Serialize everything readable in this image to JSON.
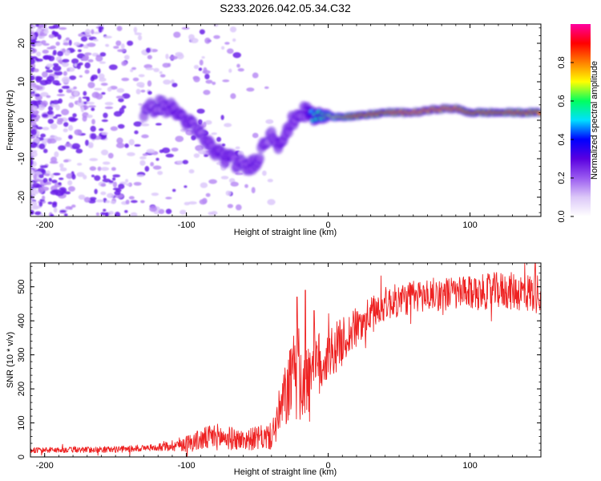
{
  "chart_data": [
    {
      "type": "heatmap",
      "title": "S233.2026.042.05.34.C32",
      "xlabel": "Height of straight line (km)",
      "ylabel": "Frequency (Hz)",
      "xlim": [
        -210,
        150
      ],
      "ylim": [
        -25,
        25
      ],
      "xticks": [
        -200,
        -100,
        0,
        100
      ],
      "yticks": [
        -20,
        -10,
        0,
        10,
        20
      ],
      "colorbar": {
        "label": "Normalized spectral amplitude",
        "range": [
          0.0,
          1.0
        ],
        "ticks": [
          "0.0",
          "0.2",
          "0.4",
          "0.6",
          "0.8"
        ],
        "tick_values": [
          0.0,
          0.2,
          0.4,
          0.6,
          0.8
        ],
        "colormap": [
          "#ffffff",
          "#dcc8f8",
          "#9a5af0",
          "#5a00e0",
          "#0000ff",
          "#00e0ff",
          "#00ff60",
          "#ffff00",
          "#ff8000",
          "#ff0000",
          "#ff00a0"
        ]
      },
      "ridge": {
        "x": [
          -130,
          -120,
          -110,
          -100,
          -90,
          -80,
          -70,
          -60,
          -55,
          -50,
          -45,
          -40,
          -35,
          -30,
          -25,
          -20,
          -15,
          -10,
          0,
          20,
          40,
          60,
          80,
          90,
          100,
          120,
          150
        ],
        "freq": [
          2,
          4,
          3,
          0,
          -4,
          -8,
          -10,
          -12,
          -12,
          -10,
          -6,
          -3,
          -6,
          -4,
          0,
          2,
          2,
          1,
          1,
          1,
          2,
          2,
          3,
          3,
          2,
          2,
          2
        ],
        "amplitude": [
          0.25,
          0.25,
          0.3,
          0.3,
          0.25,
          0.3,
          0.3,
          0.25,
          0.3,
          0.3,
          0.25,
          0.25,
          0.3,
          0.3,
          0.3,
          0.25,
          0.3,
          0.55,
          0.65,
          0.9,
          0.9,
          0.95,
          0.95,
          0.95,
          0.9,
          0.9,
          0.9
        ]
      }
    },
    {
      "type": "line",
      "xlabel": "Height of straight line (km)",
      "ylabel": "SNR (10 * v/v)",
      "xlim": [
        -210,
        150
      ],
      "ylim": [
        0,
        570
      ],
      "xticks": [
        -200,
        -100,
        0,
        100
      ],
      "yticks": [
        0,
        100,
        200,
        300,
        400,
        500
      ],
      "color": "#ee2222",
      "trend": {
        "x": [
          -210,
          -150,
          -120,
          -100,
          -80,
          -60,
          -40,
          -35,
          -30,
          -25,
          -20,
          -15,
          -10,
          0,
          10,
          20,
          30,
          40,
          50,
          60,
          80,
          100,
          120,
          150
        ],
        "y": [
          20,
          22,
          28,
          40,
          60,
          50,
          60,
          120,
          180,
          230,
          250,
          200,
          250,
          300,
          340,
          380,
          420,
          450,
          460,
          470,
          480,
          480,
          490,
          480
        ]
      },
      "noise_amplitude": {
        "x": [
          -210,
          -120,
          -100,
          -80,
          -60,
          -40,
          -30,
          -20,
          -10,
          0,
          30,
          60,
          100,
          150
        ],
        "y": [
          8,
          10,
          25,
          40,
          30,
          40,
          100,
          150,
          120,
          80,
          50,
          50,
          50,
          60
        ]
      },
      "spikes": [
        {
          "x": -16,
          "y": 490
        },
        {
          "x": -22,
          "y": 470
        },
        {
          "x": -10,
          "y": 430
        },
        {
          "x": 146,
          "y": 570
        }
      ]
    }
  ]
}
